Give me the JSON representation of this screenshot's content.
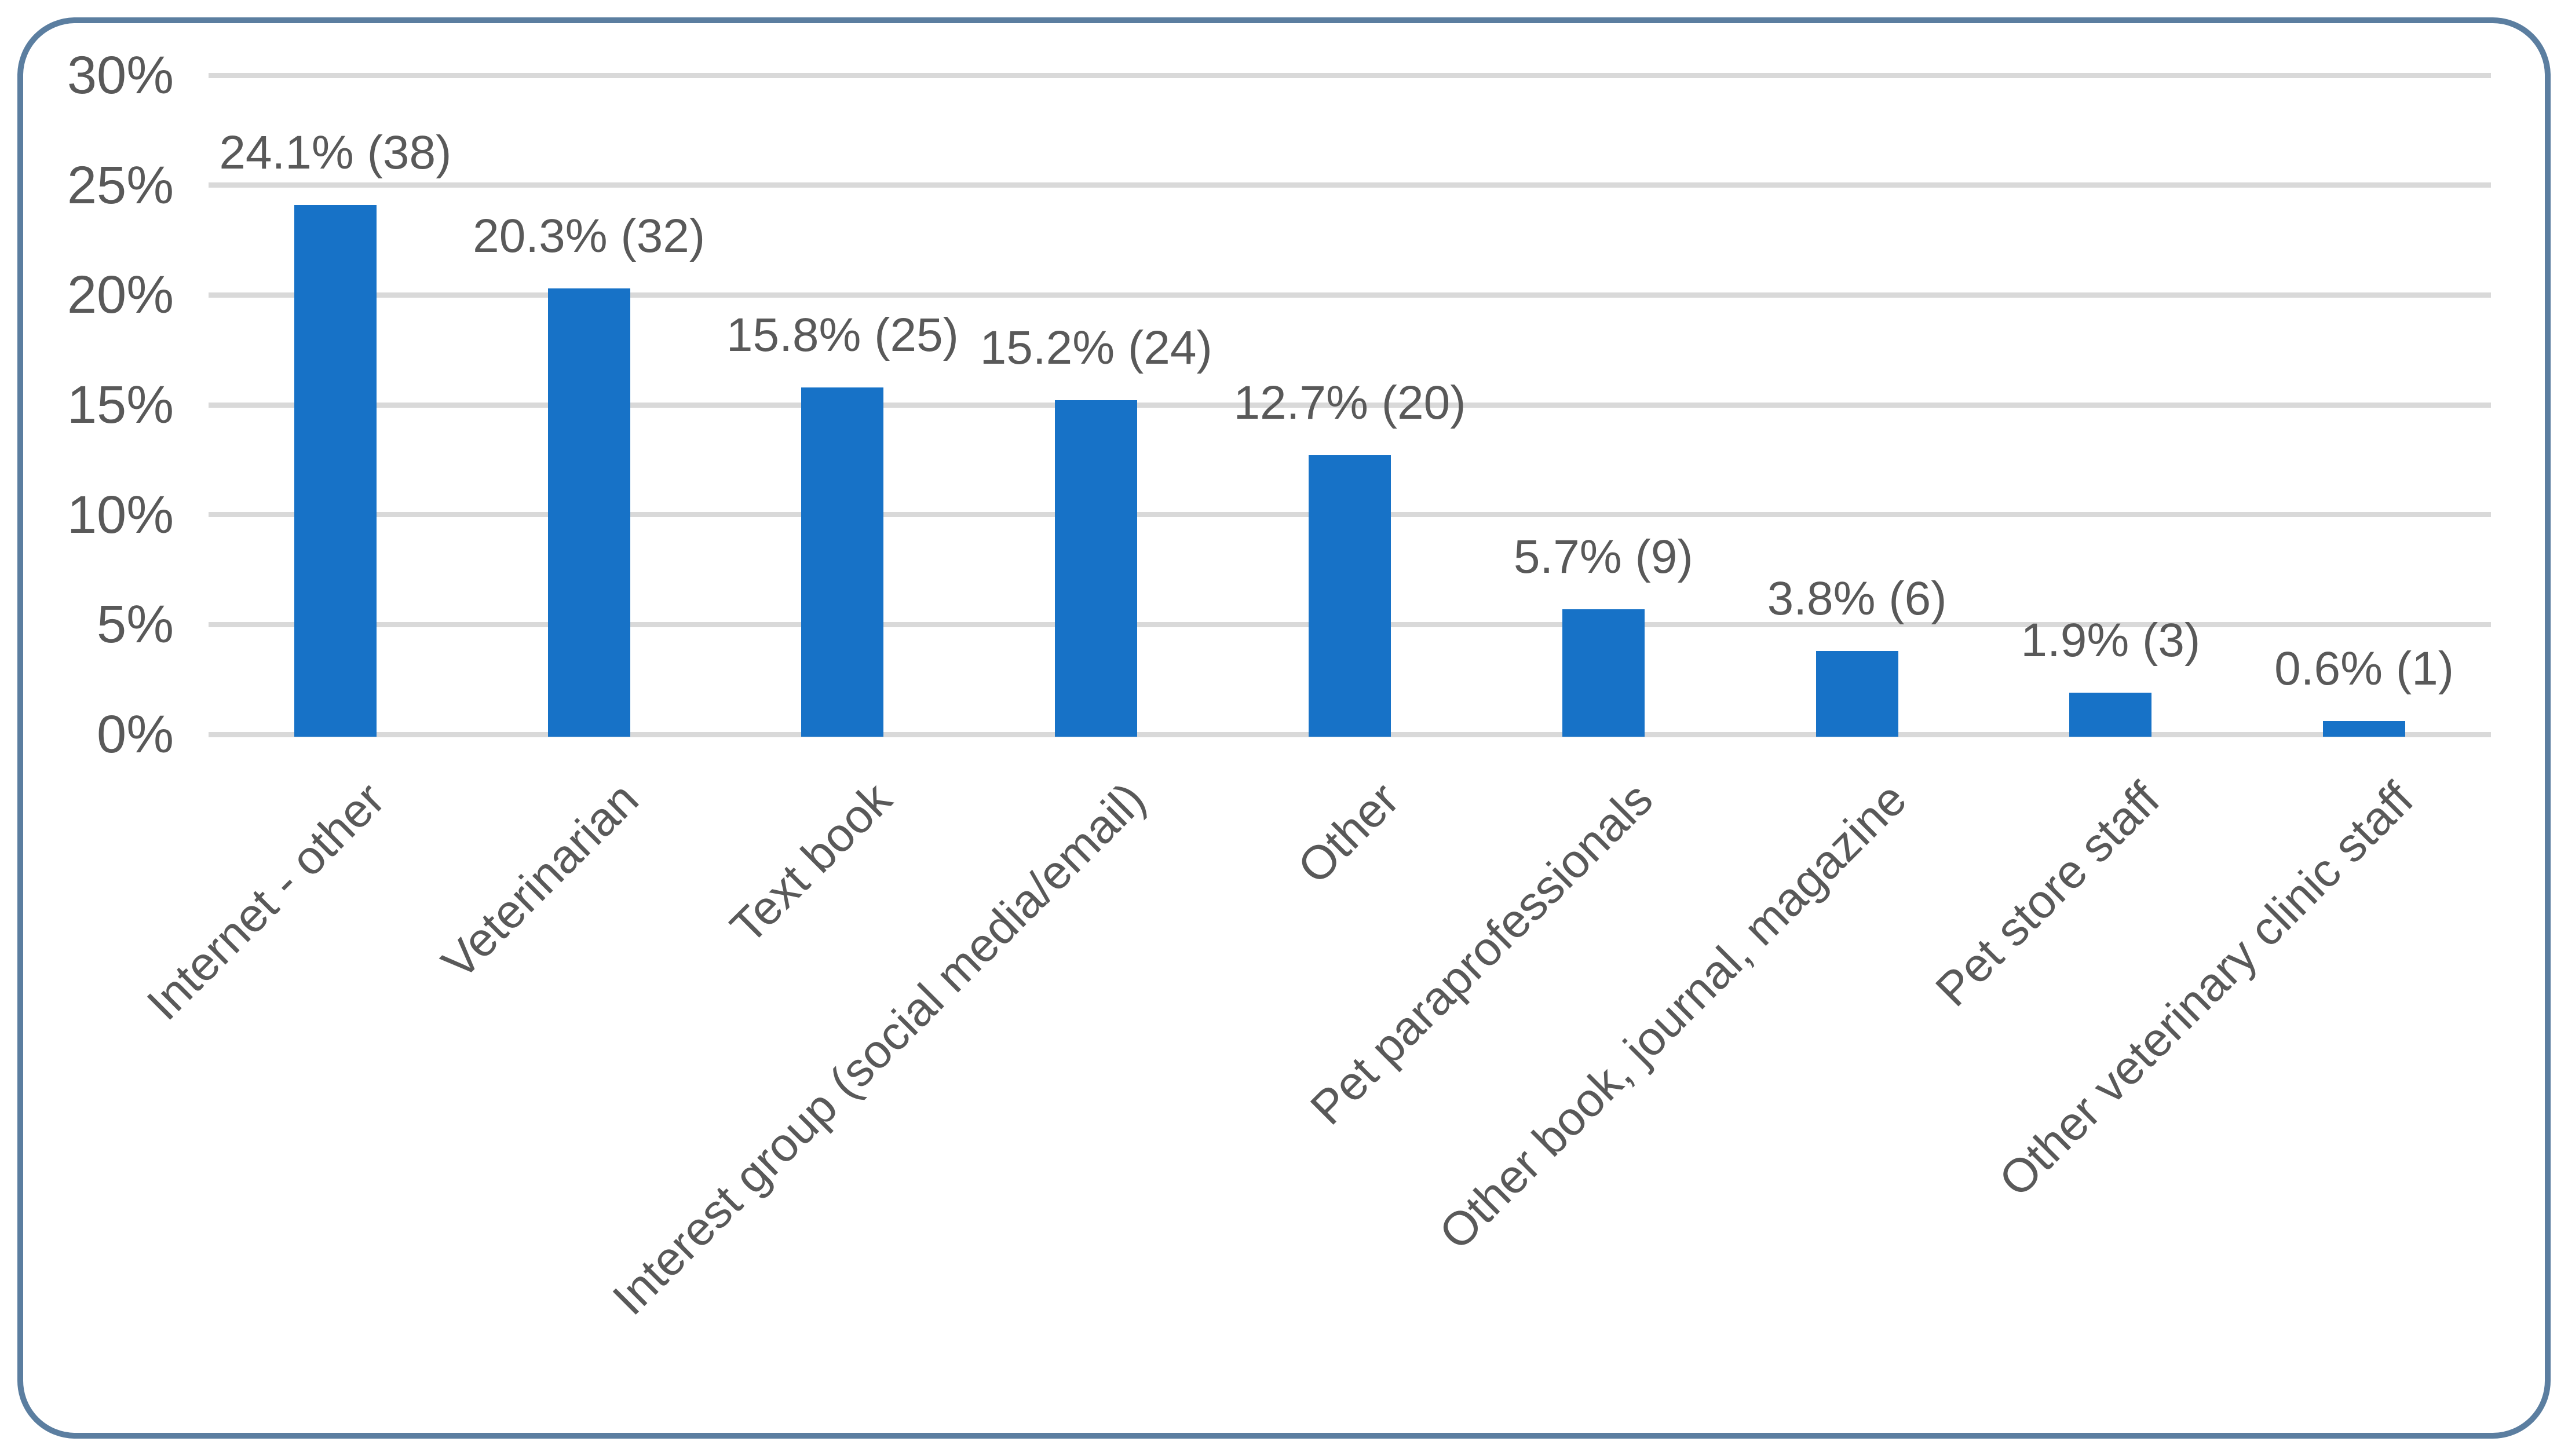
{
  "chart_data": {
    "type": "bar",
    "title": "",
    "xlabel": "",
    "ylabel": "",
    "categories": [
      "Internet - other",
      "Veterinarian",
      "Text book",
      "Interest group (social media/email)",
      "Other",
      "Pet paraprofessionals",
      "Other book, journal, magazine",
      "Pet store staff",
      "Other veterinary clinic staff"
    ],
    "values": [
      24.1,
      20.3,
      15.8,
      15.2,
      12.7,
      5.7,
      3.8,
      1.9,
      0.6
    ],
    "counts": [
      38,
      32,
      25,
      24,
      20,
      9,
      6,
      3,
      1
    ],
    "data_labels": [
      "24.1% (38)",
      "20.3% (32)",
      "15.8% (25)",
      "15.2% (24)",
      "12.7% (20)",
      "5.7% (9)",
      "3.8% (6)",
      "1.9% (3)",
      "0.6% (1)"
    ],
    "yticks": [
      "30%",
      "25%",
      "20%",
      "15%",
      "10%",
      "5%",
      "0%"
    ],
    "ytick_values": [
      30,
      25,
      20,
      15,
      10,
      5,
      0
    ],
    "ylim": [
      0,
      30
    ],
    "grid": true,
    "legend": false,
    "colors": {
      "bar": "#1772C7",
      "frame_border": "#5B7EA0",
      "gridline": "#D9D9D9",
      "text": "#595959"
    }
  }
}
